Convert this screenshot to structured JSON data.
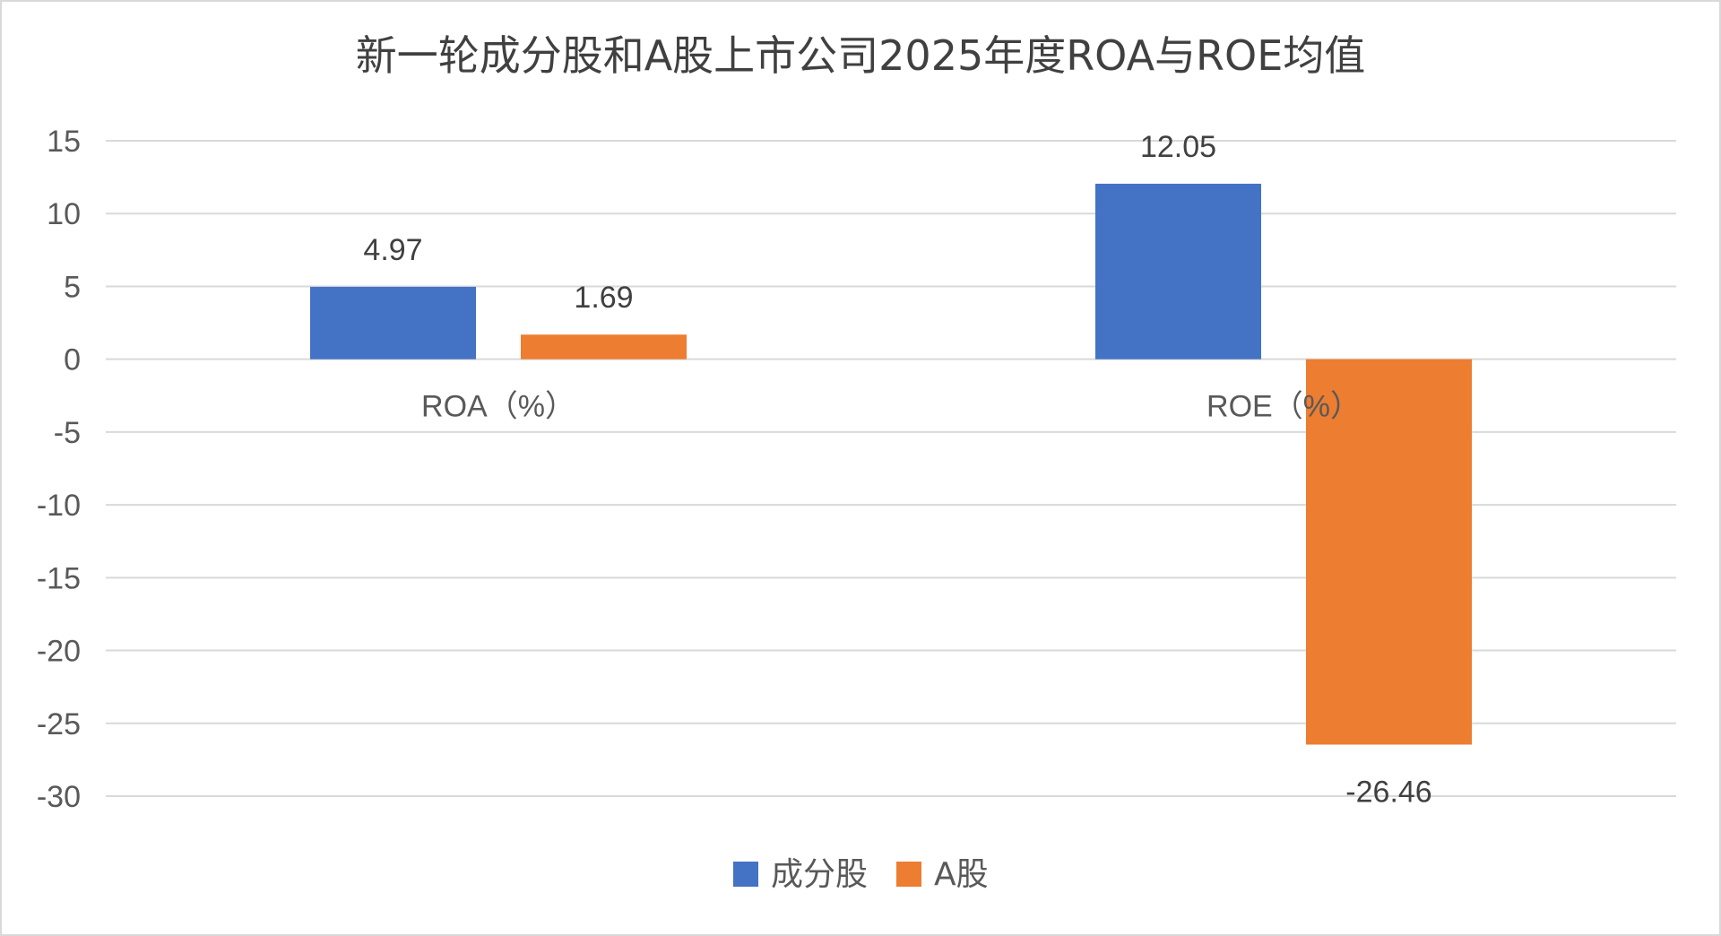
{
  "chart_data": {
    "type": "bar",
    "title": "新一轮成分股和A股上市公司2025年度ROA与ROE均值",
    "categories": [
      "ROA（%）",
      "ROE（%）"
    ],
    "series": [
      {
        "name": "成分股",
        "values": [
          4.97,
          12.05
        ],
        "color": "#4472C4"
      },
      {
        "name": "A股",
        "values": [
          1.69,
          -26.46
        ],
        "color": "#ED7D31"
      }
    ],
    "y_ticks": [
      15,
      10,
      5,
      0,
      -5,
      -10,
      -15,
      -20,
      -25,
      -30
    ],
    "ylim": [
      -30,
      15
    ],
    "grid": true,
    "legend_position": "bottom",
    "data_labels": [
      "4.97",
      "12.05",
      "1.69",
      "-26.46"
    ]
  }
}
